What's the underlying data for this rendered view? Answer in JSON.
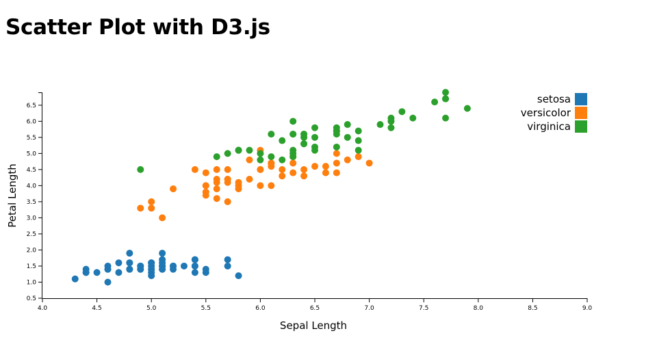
{
  "page": {
    "title": "Scatter Plot with D3.js"
  },
  "colors": {
    "setosa": "#1f77b4",
    "versicolor": "#ff7f0e",
    "virginica": "#2ca02c",
    "axis": "#000000"
  },
  "chart_data": {
    "type": "scatter",
    "title": "",
    "xlabel": "Sepal Length",
    "ylabel": "Petal Length",
    "xlim": [
      4.0,
      9.0
    ],
    "ylim": [
      0.5,
      6.9
    ],
    "xticks": [
      "4.0",
      "4.5",
      "5.0",
      "5.5",
      "6.0",
      "6.5",
      "7.0",
      "7.5",
      "8.0",
      "8.5",
      "9.0"
    ],
    "yticks": [
      "0.5",
      "1.0",
      "1.5",
      "2.0",
      "2.5",
      "3.0",
      "3.5",
      "4.0",
      "4.5",
      "5.0",
      "5.5",
      "6.0",
      "6.5"
    ],
    "legend_position": "top-right",
    "series": [
      {
        "name": "setosa",
        "color": "#1f77b4",
        "points": [
          [
            5.1,
            1.4
          ],
          [
            4.9,
            1.4
          ],
          [
            4.7,
            1.3
          ],
          [
            4.6,
            1.5
          ],
          [
            5.0,
            1.4
          ],
          [
            5.4,
            1.7
          ],
          [
            4.6,
            1.4
          ],
          [
            5.0,
            1.5
          ],
          [
            4.4,
            1.4
          ],
          [
            4.9,
            1.5
          ],
          [
            5.4,
            1.5
          ],
          [
            4.8,
            1.6
          ],
          [
            4.8,
            1.4
          ],
          [
            4.3,
            1.1
          ],
          [
            5.8,
            1.2
          ],
          [
            5.7,
            1.5
          ],
          [
            5.4,
            1.3
          ],
          [
            5.1,
            1.4
          ],
          [
            5.7,
            1.7
          ],
          [
            5.1,
            1.5
          ],
          [
            5.4,
            1.7
          ],
          [
            5.1,
            1.5
          ],
          [
            4.6,
            1.0
          ],
          [
            5.1,
            1.7
          ],
          [
            4.8,
            1.9
          ],
          [
            5.0,
            1.6
          ],
          [
            5.0,
            1.6
          ],
          [
            5.2,
            1.5
          ],
          [
            5.2,
            1.4
          ],
          [
            4.7,
            1.6
          ],
          [
            4.8,
            1.6
          ],
          [
            5.4,
            1.5
          ],
          [
            5.2,
            1.5
          ],
          [
            5.5,
            1.4
          ],
          [
            4.9,
            1.5
          ],
          [
            5.0,
            1.2
          ],
          [
            5.5,
            1.3
          ],
          [
            4.9,
            1.4
          ],
          [
            4.4,
            1.3
          ],
          [
            5.1,
            1.5
          ],
          [
            5.0,
            1.3
          ],
          [
            4.5,
            1.3
          ],
          [
            4.4,
            1.3
          ],
          [
            5.0,
            1.6
          ],
          [
            5.1,
            1.9
          ],
          [
            4.8,
            1.4
          ],
          [
            5.1,
            1.6
          ],
          [
            4.6,
            1.4
          ],
          [
            5.3,
            1.5
          ],
          [
            5.0,
            1.4
          ]
        ]
      },
      {
        "name": "versicolor",
        "color": "#ff7f0e",
        "points": [
          [
            7.0,
            4.7
          ],
          [
            6.4,
            4.5
          ],
          [
            6.9,
            4.9
          ],
          [
            5.5,
            4.0
          ],
          [
            6.5,
            4.6
          ],
          [
            5.7,
            4.5
          ],
          [
            6.3,
            4.7
          ],
          [
            4.9,
            3.3
          ],
          [
            6.6,
            4.6
          ],
          [
            5.2,
            3.9
          ],
          [
            5.0,
            3.5
          ],
          [
            5.9,
            4.2
          ],
          [
            6.0,
            4.0
          ],
          [
            6.1,
            4.7
          ],
          [
            5.6,
            3.6
          ],
          [
            6.7,
            4.4
          ],
          [
            5.6,
            4.5
          ],
          [
            5.8,
            4.1
          ],
          [
            6.2,
            4.5
          ],
          [
            5.6,
            3.9
          ],
          [
            5.9,
            4.8
          ],
          [
            6.1,
            4.0
          ],
          [
            6.3,
            4.9
          ],
          [
            6.1,
            4.7
          ],
          [
            6.4,
            4.3
          ],
          [
            6.6,
            4.4
          ],
          [
            6.8,
            4.8
          ],
          [
            6.7,
            5.0
          ],
          [
            6.0,
            4.5
          ],
          [
            5.7,
            3.5
          ],
          [
            5.5,
            3.8
          ],
          [
            5.5,
            3.7
          ],
          [
            5.8,
            3.9
          ],
          [
            6.0,
            5.1
          ],
          [
            5.4,
            4.5
          ],
          [
            6.0,
            4.5
          ],
          [
            6.7,
            4.7
          ],
          [
            6.3,
            4.4
          ],
          [
            5.6,
            4.1
          ],
          [
            5.5,
            4.0
          ],
          [
            5.5,
            4.4
          ],
          [
            6.1,
            4.6
          ],
          [
            5.8,
            4.0
          ],
          [
            5.0,
            3.3
          ],
          [
            5.6,
            4.2
          ],
          [
            5.7,
            4.2
          ],
          [
            5.7,
            4.2
          ],
          [
            6.2,
            4.3
          ],
          [
            5.1,
            3.0
          ],
          [
            5.7,
            4.1
          ]
        ]
      },
      {
        "name": "virginica",
        "color": "#2ca02c",
        "points": [
          [
            6.3,
            6.0
          ],
          [
            5.8,
            5.1
          ],
          [
            7.1,
            5.9
          ],
          [
            6.3,
            5.6
          ],
          [
            6.5,
            5.8
          ],
          [
            7.6,
            6.6
          ],
          [
            4.9,
            4.5
          ],
          [
            7.3,
            6.3
          ],
          [
            6.7,
            5.8
          ],
          [
            7.2,
            6.1
          ],
          [
            6.5,
            5.1
          ],
          [
            6.4,
            5.3
          ],
          [
            6.8,
            5.5
          ],
          [
            5.7,
            5.0
          ],
          [
            5.8,
            5.1
          ],
          [
            6.4,
            5.3
          ],
          [
            6.5,
            5.5
          ],
          [
            7.7,
            6.7
          ],
          [
            7.7,
            6.9
          ],
          [
            6.0,
            5.0
          ],
          [
            6.9,
            5.7
          ],
          [
            5.6,
            4.9
          ],
          [
            7.7,
            6.7
          ],
          [
            6.3,
            4.9
          ],
          [
            6.7,
            5.7
          ],
          [
            7.2,
            6.0
          ],
          [
            6.2,
            4.8
          ],
          [
            6.1,
            4.9
          ],
          [
            6.4,
            5.6
          ],
          [
            7.2,
            5.8
          ],
          [
            7.4,
            6.1
          ],
          [
            7.9,
            6.4
          ],
          [
            6.4,
            5.6
          ],
          [
            6.3,
            5.1
          ],
          [
            6.1,
            5.6
          ],
          [
            7.7,
            6.1
          ],
          [
            6.3,
            5.6
          ],
          [
            6.4,
            5.5
          ],
          [
            6.0,
            4.8
          ],
          [
            6.9,
            5.4
          ],
          [
            6.7,
            5.6
          ],
          [
            6.9,
            5.1
          ],
          [
            5.8,
            5.1
          ],
          [
            6.8,
            5.9
          ],
          [
            6.7,
            5.7
          ],
          [
            6.7,
            5.2
          ],
          [
            6.3,
            5.0
          ],
          [
            6.5,
            5.2
          ],
          [
            6.2,
            5.4
          ],
          [
            5.9,
            5.1
          ]
        ]
      }
    ]
  }
}
